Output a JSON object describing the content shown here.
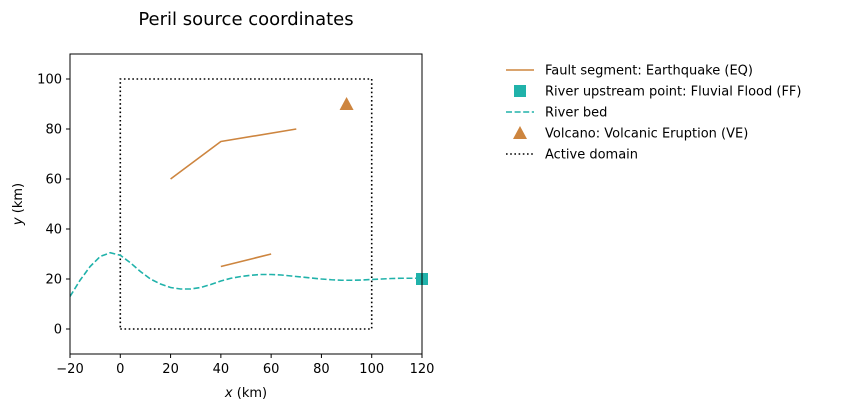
{
  "chart_data": {
    "type": "line",
    "title": "Peril source coordinates",
    "xlabel": "x (km)",
    "xlabel_var": "x",
    "xlabel_unit": " (km)",
    "ylabel": "y (km)",
    "ylabel_var": "y",
    "ylabel_unit": " (km)",
    "xlim": [
      -20,
      120
    ],
    "ylim": [
      -10,
      110
    ],
    "xticks": [
      -20,
      0,
      20,
      40,
      60,
      80,
      100,
      120
    ],
    "yticks": [
      0,
      20,
      40,
      60,
      80,
      100
    ],
    "xtick_labels": [
      "−20",
      "0",
      "20",
      "40",
      "60",
      "80",
      "100",
      "120"
    ],
    "ytick_labels": [
      "0",
      "20",
      "40",
      "60",
      "80",
      "100"
    ],
    "grid": false,
    "legend_position": "outside right, top",
    "colors": {
      "fault": "#cd853f",
      "river": "#20b2aa",
      "volcano": "#cd853f",
      "domain": "#000000"
    },
    "series": [
      {
        "name": "Fault segment: Earthquake (EQ)",
        "kind": "fault",
        "segments": [
          [
            [
              20,
              60
            ],
            [
              40,
              75
            ],
            [
              70,
              80
            ]
          ],
          [
            [
              40,
              25
            ],
            [
              60,
              30
            ]
          ]
        ]
      },
      {
        "name": "River upstream point: Fluvial Flood (FF)",
        "kind": "river-point",
        "points": [
          [
            120,
            20
          ]
        ]
      },
      {
        "name": "River bed",
        "kind": "river-bed",
        "points": [
          [
            -20,
            13
          ],
          [
            -16,
            19.5
          ],
          [
            -12,
            25
          ],
          [
            -8,
            29
          ],
          [
            -4,
            30.5
          ],
          [
            0,
            29.5
          ],
          [
            4,
            26.5
          ],
          [
            8,
            23
          ],
          [
            12,
            20
          ],
          [
            16,
            18
          ],
          [
            20,
            16.6
          ],
          [
            24,
            16
          ],
          [
            28,
            16
          ],
          [
            32,
            16.6
          ],
          [
            36,
            17.8
          ],
          [
            40,
            19.2
          ],
          [
            44,
            20.3
          ],
          [
            48,
            21
          ],
          [
            52,
            21.5
          ],
          [
            56,
            21.8
          ],
          [
            60,
            21.8
          ],
          [
            64,
            21.6
          ],
          [
            68,
            21.2
          ],
          [
            72,
            20.8
          ],
          [
            76,
            20.4
          ],
          [
            80,
            20
          ],
          [
            84,
            19.7
          ],
          [
            88,
            19.5
          ],
          [
            92,
            19.5
          ],
          [
            96,
            19.6
          ],
          [
            100,
            19.8
          ],
          [
            104,
            20
          ],
          [
            108,
            20.2
          ],
          [
            112,
            20.3
          ],
          [
            116,
            20.3
          ],
          [
            120,
            20.3
          ]
        ]
      },
      {
        "name": "Volcano: Volcanic Eruption (VE)",
        "kind": "volcano",
        "points": [
          [
            90,
            90
          ]
        ]
      },
      {
        "name": "Active domain",
        "kind": "domain",
        "points": [
          [
            0,
            0
          ],
          [
            100,
            0
          ],
          [
            100,
            100
          ],
          [
            0,
            100
          ],
          [
            0,
            0
          ]
        ]
      }
    ]
  }
}
